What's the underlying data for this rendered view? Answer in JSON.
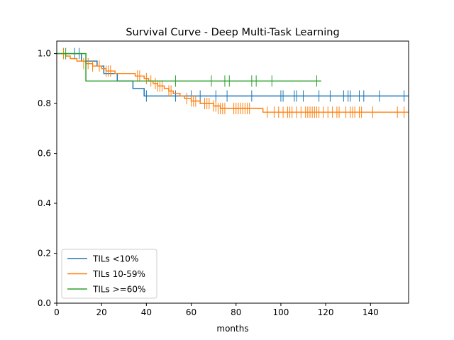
{
  "chart_data": {
    "type": "line",
    "title": "Survival Curve - Deep Multi-Task Learning",
    "xlabel": "months",
    "ylabel": "",
    "xlim": [
      0,
      157
    ],
    "ylim": [
      0,
      1.05
    ],
    "xticks": [
      0,
      20,
      40,
      60,
      80,
      100,
      120,
      140
    ],
    "yticks": [
      0.0,
      0.2,
      0.4,
      0.6,
      0.8,
      1.0
    ],
    "xtick_labels": [
      "0",
      "20",
      "40",
      "60",
      "80",
      "100",
      "120",
      "140"
    ],
    "ytick_labels": [
      "0.0",
      "0.2",
      "0.4",
      "0.6",
      "0.8",
      "1.0"
    ],
    "legend_position": "lower-left",
    "series": [
      {
        "name": "TILs <10%",
        "color": "#1f77b4",
        "steps": [
          [
            0,
            1.0
          ],
          [
            11,
            0.97
          ],
          [
            18,
            0.95
          ],
          [
            21,
            0.92
          ],
          [
            27,
            0.89
          ],
          [
            34,
            0.86
          ],
          [
            39,
            0.83
          ],
          [
            157,
            0.83
          ]
        ],
        "censored": [
          [
            8,
            1.0
          ],
          [
            10,
            1.0
          ],
          [
            40,
            0.83
          ],
          [
            53,
            0.83
          ],
          [
            60,
            0.83
          ],
          [
            64,
            0.83
          ],
          [
            71,
            0.83
          ],
          [
            76,
            0.83
          ],
          [
            87,
            0.83
          ],
          [
            100,
            0.83
          ],
          [
            101,
            0.83
          ],
          [
            106,
            0.83
          ],
          [
            107,
            0.83
          ],
          [
            110,
            0.83
          ],
          [
            117,
            0.83
          ],
          [
            122,
            0.83
          ],
          [
            128,
            0.83
          ],
          [
            130,
            0.83
          ],
          [
            131,
            0.83
          ],
          [
            135,
            0.83
          ],
          [
            137,
            0.83
          ],
          [
            144,
            0.83
          ],
          [
            155,
            0.83
          ]
        ]
      },
      {
        "name": "TILs 10-59%",
        "color": "#ff7f0e",
        "steps": [
          [
            0,
            1.0
          ],
          [
            4,
            0.99
          ],
          [
            6,
            0.98
          ],
          [
            9,
            0.97
          ],
          [
            13,
            0.96
          ],
          [
            16,
            0.95
          ],
          [
            20,
            0.94
          ],
          [
            22,
            0.93
          ],
          [
            26,
            0.92
          ],
          [
            35,
            0.91
          ],
          [
            39,
            0.9
          ],
          [
            41,
            0.89
          ],
          [
            43,
            0.88
          ],
          [
            45,
            0.87
          ],
          [
            48,
            0.86
          ],
          [
            50,
            0.85
          ],
          [
            52,
            0.84
          ],
          [
            55,
            0.83
          ],
          [
            57,
            0.82
          ],
          [
            60,
            0.81
          ],
          [
            64,
            0.8
          ],
          [
            70,
            0.79
          ],
          [
            73,
            0.78
          ],
          [
            92,
            0.765
          ],
          [
            157,
            0.765
          ]
        ],
        "censored": [
          [
            3,
            1.0
          ],
          [
            12,
            0.96
          ],
          [
            14,
            0.96
          ],
          [
            16,
            0.95
          ],
          [
            19,
            0.95
          ],
          [
            22,
            0.93
          ],
          [
            23,
            0.93
          ],
          [
            24,
            0.93
          ],
          [
            36,
            0.91
          ],
          [
            37,
            0.91
          ],
          [
            40,
            0.9
          ],
          [
            42,
            0.89
          ],
          [
            44,
            0.88
          ],
          [
            45,
            0.87
          ],
          [
            46,
            0.87
          ],
          [
            47,
            0.87
          ],
          [
            50,
            0.85
          ],
          [
            51,
            0.85
          ],
          [
            58,
            0.82
          ],
          [
            60,
            0.81
          ],
          [
            61,
            0.81
          ],
          [
            62,
            0.81
          ],
          [
            66,
            0.8
          ],
          [
            67,
            0.8
          ],
          [
            68,
            0.8
          ],
          [
            70,
            0.79
          ],
          [
            71,
            0.79
          ],
          [
            72,
            0.78
          ],
          [
            73,
            0.78
          ],
          [
            74,
            0.78
          ],
          [
            75,
            0.78
          ],
          [
            79,
            0.78
          ],
          [
            80,
            0.78
          ],
          [
            81,
            0.78
          ],
          [
            82,
            0.78
          ],
          [
            83,
            0.78
          ],
          [
            84,
            0.78
          ],
          [
            85,
            0.78
          ],
          [
            86,
            0.78
          ],
          [
            94,
            0.765
          ],
          [
            97,
            0.765
          ],
          [
            99,
            0.765
          ],
          [
            101,
            0.765
          ],
          [
            103,
            0.765
          ],
          [
            104,
            0.765
          ],
          [
            105,
            0.765
          ],
          [
            107,
            0.765
          ],
          [
            109,
            0.765
          ],
          [
            111,
            0.765
          ],
          [
            112,
            0.765
          ],
          [
            113,
            0.765
          ],
          [
            114,
            0.765
          ],
          [
            115,
            0.765
          ],
          [
            116,
            0.765
          ],
          [
            117,
            0.765
          ],
          [
            119,
            0.765
          ],
          [
            121,
            0.765
          ],
          [
            123,
            0.765
          ],
          [
            125,
            0.765
          ],
          [
            126,
            0.765
          ],
          [
            129,
            0.765
          ],
          [
            131,
            0.765
          ],
          [
            132,
            0.765
          ],
          [
            133,
            0.765
          ],
          [
            135,
            0.765
          ],
          [
            136,
            0.765
          ],
          [
            141,
            0.765
          ],
          [
            152,
            0.765
          ],
          [
            155,
            0.765
          ]
        ]
      },
      {
        "name": "TILs >=60%",
        "color": "#2ca02c",
        "steps": [
          [
            0,
            1.0
          ],
          [
            13,
            0.89
          ],
          [
            118,
            0.89
          ]
        ],
        "censored": [
          [
            4,
            1.0
          ],
          [
            53,
            0.89
          ],
          [
            69,
            0.89
          ],
          [
            75,
            0.89
          ],
          [
            77,
            0.89
          ],
          [
            87,
            0.89
          ],
          [
            89,
            0.89
          ],
          [
            96,
            0.89
          ],
          [
            116,
            0.89
          ]
        ]
      }
    ]
  }
}
